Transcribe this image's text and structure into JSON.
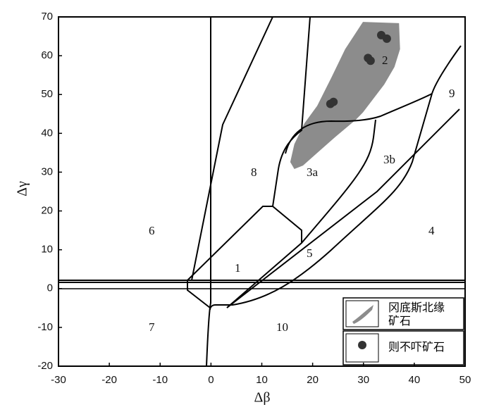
{
  "chart_data": {
    "type": "scatter",
    "x_label": "Δβ",
    "y_label": "Δγ",
    "xlim": [
      -30,
      50
    ],
    "xticks": [
      -30,
      -20,
      -10,
      0,
      10,
      20,
      30,
      40,
      50
    ],
    "ylim": [
      -20,
      70
    ],
    "yticks": [
      -20,
      -10,
      0,
      10,
      20,
      30,
      40,
      50,
      60,
      70
    ],
    "series": [
      {
        "name": "冈底斯北缘矿石",
        "color": "#8c8c8c",
        "kind": "area",
        "x": [
          29.9,
          37.0,
          37.2,
          36.1,
          34.1,
          32.0,
          29.9,
          28.5,
          24.4,
          21.2,
          18.1,
          16.4,
          15.6,
          16.4,
          18.4,
          20.9,
          23.7,
          26.4
        ],
        "values": [
          68.7,
          68.4,
          61.7,
          57.1,
          52.6,
          49.0,
          45.4,
          43.5,
          39.0,
          35.3,
          31.7,
          30.8,
          32.6,
          37.2,
          42.6,
          47.1,
          54.4,
          61.7
        ]
      },
      {
        "name": "则不吓矿石",
        "color": "#333333",
        "kind": "points",
        "x": [
          33.5,
          34.6,
          30.9,
          31.4,
          23.5,
          24.1
        ],
        "values": [
          65.3,
          64.4,
          59.4,
          58.7,
          47.6,
          48.1
        ]
      }
    ],
    "annotations": [
      "1",
      "2",
      "3a",
      "3b",
      "4",
      "5",
      "6",
      "7",
      "8",
      "9",
      "10"
    ]
  }
}
